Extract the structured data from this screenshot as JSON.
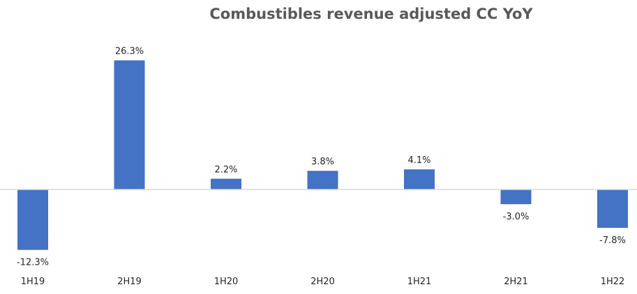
{
  "chart_data": {
    "type": "bar",
    "title": "Combustibles revenue adjusted CC YoY",
    "categories": [
      "1H19",
      "2H19",
      "1H20",
      "2H20",
      "1H21",
      "2H21",
      "1H22"
    ],
    "values": [
      -12.3,
      26.3,
      2.2,
      3.8,
      4.1,
      -3.0,
      -7.8
    ],
    "value_labels": [
      "-12.3%",
      "26.3%",
      "2.2%",
      "3.8%",
      "4.1%",
      "-3.0%",
      "-7.8%"
    ],
    "ylim": [
      -20,
      30
    ],
    "grid": false,
    "legend": "none",
    "colors": {
      "bar": "#4472C4",
      "axis": "#d9d9d9",
      "title": "#595959",
      "text": "#262626"
    }
  }
}
